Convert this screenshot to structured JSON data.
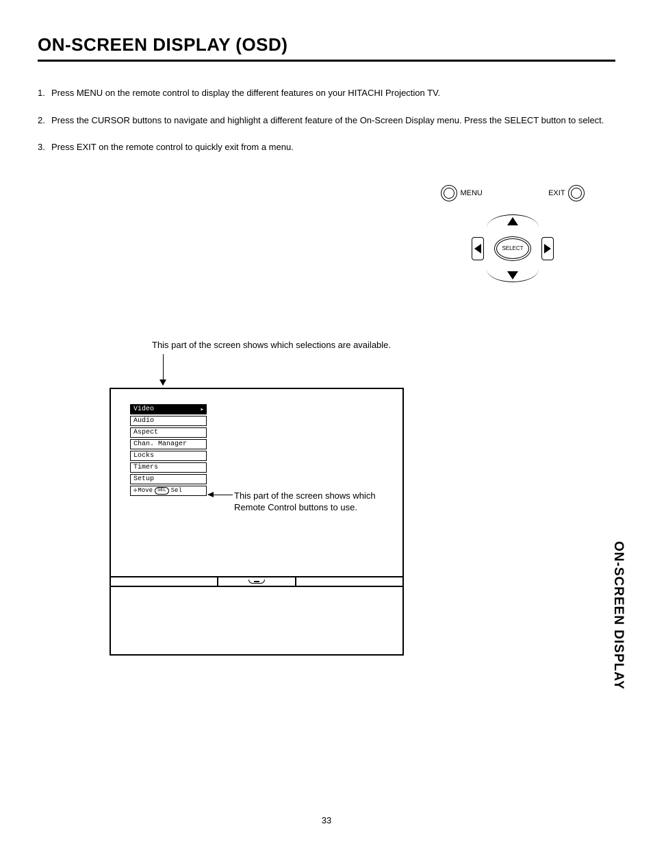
{
  "title": "ON-SCREEN DISPLAY (OSD)",
  "instructions": [
    {
      "num": "1.",
      "text": "Press MENU on the remote control to display the different features on your HITACHI Projection TV."
    },
    {
      "num": "2.",
      "text": "Press the CURSOR buttons to navigate and highlight a different feature of the On-Screen Display menu. Press the SELECT button to select."
    },
    {
      "num": "3.",
      "text": "Press EXIT on the remote control to quickly exit from a menu."
    }
  ],
  "remote": {
    "menu_label": "MENU",
    "exit_label": "EXIT",
    "select_label": "SELECT"
  },
  "caption_top": "This part of the screen shows which selections are available.",
  "caption_right": "This part of the screen shows which Remote Control buttons to use.",
  "osd_menu": {
    "items": [
      "Video",
      "Audio",
      "Aspect",
      "Chan. Manager",
      "Locks",
      "Timers",
      "Setup"
    ],
    "selected_index": 0,
    "hint_move": "Move",
    "hint_sel_pill": "SEL",
    "hint_sel": "Sel"
  },
  "side_tab": "ON-SCREEN DISPLAY",
  "page_number": "33",
  "colors": {
    "text": "#000000",
    "background": "#ffffff",
    "menu_selected_bg": "#000000",
    "menu_selected_fg": "#ffffff"
  }
}
